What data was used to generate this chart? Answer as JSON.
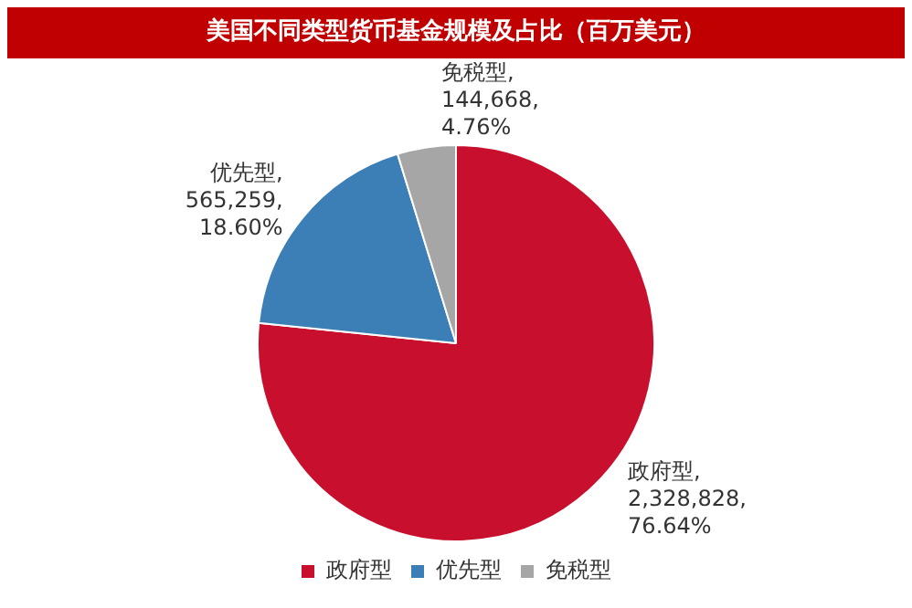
{
  "chart_data": {
    "type": "pie",
    "title": "美国不同类型货币基金规模及占比（百万美元）",
    "categories": [
      "政府型",
      "优先型",
      "免税型"
    ],
    "values": [
      2328828,
      565259,
      144668
    ],
    "colors": [
      "#c8102e",
      "#3c7fb6",
      "#a6a6a6"
    ],
    "value_labels": [
      "政府型, 2,328,828, 76.64%",
      "优先型, 565,259, 18.60%",
      "免税型, 144,668, 4.76%"
    ],
    "legend": "bottom"
  }
}
